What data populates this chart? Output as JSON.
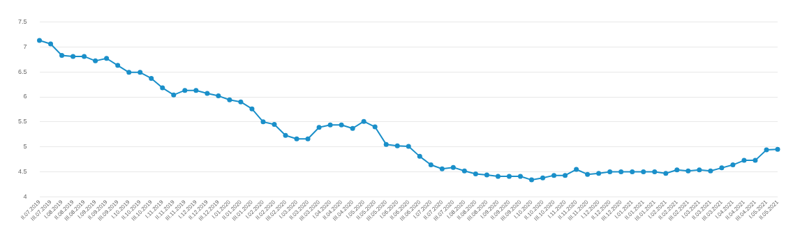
{
  "chart_data": {
    "type": "line",
    "categories": [
      "II.07.2019",
      "III.07.2019",
      "I.08.2019",
      "II.08.2019",
      "III.08.2019",
      "I.09.2019",
      "II.09.2019",
      "III.09.2019",
      "I.10.2019",
      "II.10.2019",
      "III.10.2019",
      "I.11.2019",
      "II.11.2019",
      "III.11.2019",
      "I.12.2019",
      "II.12.2019",
      "III.12.2019",
      "I.01.2020",
      "II.01.2020",
      "III.01.2020",
      "I.02.2020",
      "II.02.2020",
      "III.02.2020",
      "I.03.2020",
      "II.03.2020",
      "III.03.2020",
      "I.04.2020",
      "II.04.2020",
      "III.04.2020",
      "I.05.2020",
      "II.05.2020",
      "III.05.2020",
      "I.06.2020",
      "II.06.2020",
      "III.06.2020",
      "I.07.2020",
      "II.07.2020",
      "III.07.2020",
      "I.08.2020",
      "II.08.2020",
      "III.08.2020",
      "I.09.2020",
      "II.09.2020",
      "III.09.2020",
      "I.10.2020",
      "II.10.2020",
      "III.10.2020",
      "I.11.2020",
      "II.11.2020",
      "III.11.2020",
      "I.12.2020",
      "II.12.2020",
      "III.12.2020",
      "I.01.2021",
      "II.01.2021",
      "III.01.2021",
      "I.02.2021",
      "II.02.2021",
      "III.02.2021",
      "I.03.2021",
      "II.03.2021",
      "III.03.2021",
      "I.04.2021",
      "II.04.2021",
      "III.04.2021",
      "I.05.2021",
      "II.05.2021"
    ],
    "series": [
      {
        "color": "#1a8fc9",
        "values": [
          7.13,
          7.06,
          6.83,
          6.81,
          6.81,
          6.72,
          6.77,
          6.63,
          6.49,
          6.49,
          6.37,
          6.18,
          6.04,
          6.13,
          6.13,
          6.07,
          6.02,
          5.94,
          5.9,
          5.76,
          5.5,
          5.45,
          5.23,
          5.16,
          5.16,
          5.39,
          5.44,
          5.44,
          5.37,
          5.51,
          5.4,
          5.05,
          5.02,
          5.01,
          4.81,
          4.64,
          4.56,
          4.59,
          4.52,
          4.46,
          4.44,
          4.41,
          4.41,
          4.41,
          4.34,
          4.38,
          4.43,
          4.43,
          4.55,
          4.45,
          4.47,
          4.5,
          4.5,
          4.5,
          4.5,
          4.5,
          4.47,
          4.54,
          4.52,
          4.54,
          4.52,
          4.58,
          4.64,
          4.73,
          4.73,
          4.94,
          4.95
        ]
      }
    ],
    "ylim": [
      4,
      7.5
    ],
    "yticks": [
      4,
      4.5,
      5,
      5.5,
      6,
      6.5,
      7,
      7.5
    ],
    "grid": "y",
    "marker": "circle",
    "line_style": "solid",
    "legend": false
  }
}
